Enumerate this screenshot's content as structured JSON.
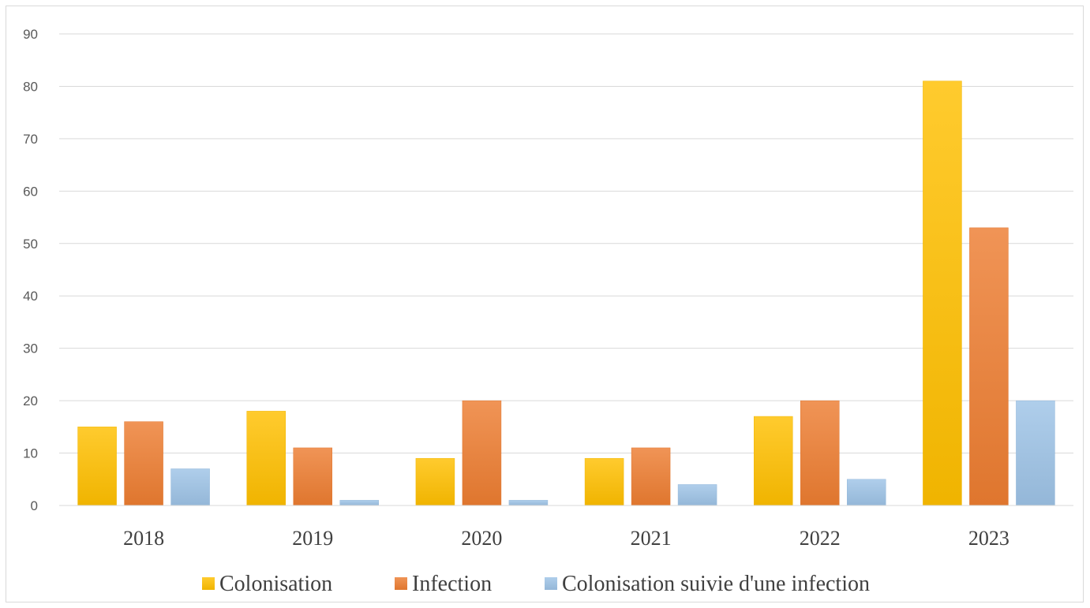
{
  "chart_data": {
    "type": "bar",
    "categories": [
      "2018",
      "2019",
      "2020",
      "2021",
      "2022",
      "2023"
    ],
    "series": [
      {
        "name": "Colonisation",
        "values": [
          15,
          18,
          9,
          9,
          17,
          81
        ],
        "color": "#FFC000"
      },
      {
        "name": "Infection",
        "values": [
          16,
          11,
          20,
          11,
          20,
          53
        ],
        "color": "#ED7D31"
      },
      {
        "name": "Colonisation suivie d'une infection",
        "values": [
          7,
          1,
          1,
          4,
          5,
          20
        ],
        "color": "#9DC3E6"
      }
    ],
    "title": "",
    "xlabel": "",
    "ylabel": "",
    "ylim": [
      0,
      90
    ],
    "yticks": [
      0,
      10,
      20,
      30,
      40,
      50,
      60,
      70,
      80,
      90
    ],
    "grid": true,
    "legend_position": "bottom"
  }
}
